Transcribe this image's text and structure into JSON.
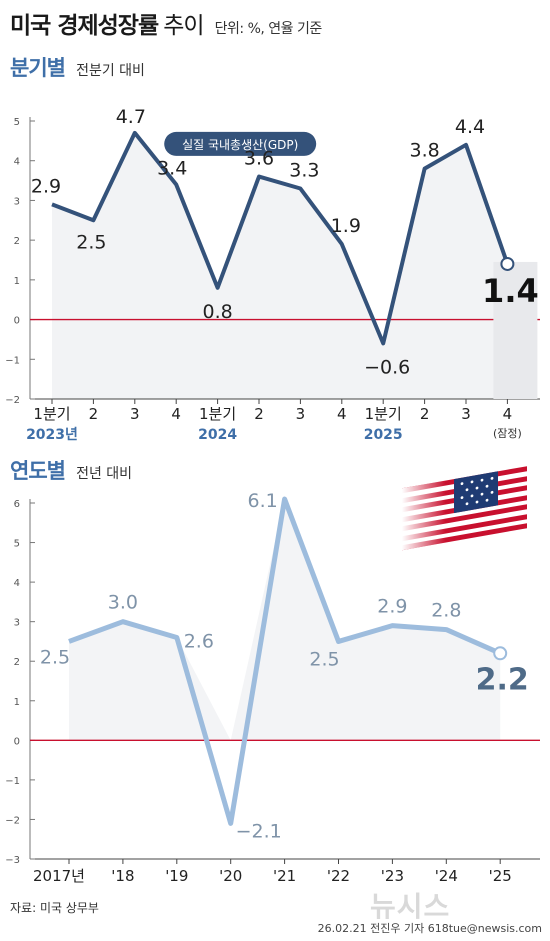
{
  "header": {
    "title_main": "미국 경제성장률",
    "title_sub": "추이",
    "unit_note": "단위: %, 연율 기준"
  },
  "section1": {
    "title": "분기별",
    "subtitle": "전분기 대비"
  },
  "section2": {
    "title": "연도별",
    "subtitle": "전년 대비"
  },
  "source": "자료: 미국 상무부",
  "credit": "26.02.21 전진우 기자 618tue@newsis.com",
  "watermark": "뉴시스",
  "chart_data": [
    {
      "type": "line",
      "series": [
        {
          "name": "실질 국내총생산(GDP)",
          "values": [
            2.9,
            2.5,
            4.7,
            3.4,
            0.8,
            3.6,
            3.3,
            1.9,
            -0.6,
            3.8,
            4.4,
            1.4
          ]
        }
      ],
      "categories": [
        "1분기",
        "2",
        "3",
        "4",
        "1분기",
        "2",
        "3",
        "4",
        "1분기",
        "2",
        "3",
        "4"
      ],
      "year_labels": [
        {
          "index": 0,
          "label": "2023년"
        },
        {
          "index": 4,
          "label": "2024"
        },
        {
          "index": 8,
          "label": "2025"
        }
      ],
      "notes": [
        {
          "index": 11,
          "text": "(잠정)"
        }
      ],
      "data_labels": [
        "2.9",
        "2.5",
        "4.7",
        "3.4",
        "0.8",
        "3.6",
        "3.3",
        "1.9",
        "−0.6",
        "3.8",
        "4.4",
        "1.4"
      ],
      "ylim": [
        -2,
        5
      ],
      "yticks": [
        -2,
        -1,
        0,
        1,
        2,
        3,
        4,
        5
      ],
      "ytick_labels": [
        "−2",
        "−1",
        "0",
        "1",
        "2",
        "3",
        "4",
        "5"
      ],
      "line_color": "#34527a",
      "zero_line_color": "#c8102e"
    },
    {
      "type": "line",
      "series": [
        {
          "name": "",
          "values": [
            2.5,
            3.0,
            2.6,
            -2.1,
            6.1,
            2.5,
            2.9,
            2.8,
            2.2
          ]
        }
      ],
      "categories": [
        "2017년",
        "'18",
        "'19",
        "'20",
        "'21",
        "'22",
        "'23",
        "'24",
        "'25"
      ],
      "data_labels": [
        "2.5",
        "3.0",
        "2.6",
        "−2.1",
        "6.1",
        "2.5",
        "2.9",
        "2.8",
        "2.2"
      ],
      "ylim": [
        -3,
        6
      ],
      "yticks": [
        -3,
        -2,
        -1,
        0,
        1,
        2,
        3,
        4,
        5,
        6
      ],
      "ytick_labels": [
        "−3",
        "−2",
        "−1",
        "0",
        "1",
        "2",
        "3",
        "4",
        "5",
        "6"
      ],
      "line_color": "#9dbcdd",
      "zero_line_color": "#c8102e"
    }
  ]
}
